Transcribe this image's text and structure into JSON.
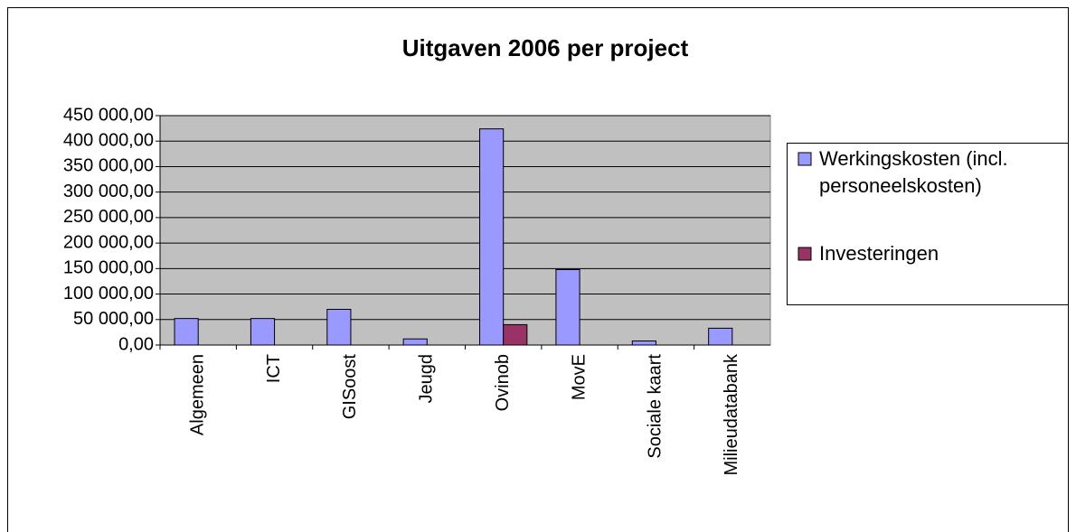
{
  "chart_data": {
    "type": "bar",
    "title": "Uitgaven 2006 per project",
    "categories": [
      "Algemeen",
      "ICT",
      "GISoost",
      "Jeugd",
      "Ovinob",
      "MovE",
      "Sociale kaart",
      "Milieudatabank"
    ],
    "series": [
      {
        "name": "Werkingskosten (incl. personeelskosten)",
        "color": "#9999ff",
        "values": [
          52000,
          52000,
          70000,
          12000,
          424000,
          148000,
          8000,
          33000
        ]
      },
      {
        "name": "Investeringen",
        "color": "#993366",
        "values": [
          0,
          0,
          0,
          0,
          40000,
          0,
          0,
          0
        ]
      }
    ],
    "ylim": [
      0,
      450000
    ],
    "yticks": [
      {
        "value": 0,
        "label": "0,00"
      },
      {
        "value": 50000,
        "label": "50 000,00"
      },
      {
        "value": 100000,
        "label": "100 000,00"
      },
      {
        "value": 150000,
        "label": "150 000,00"
      },
      {
        "value": 200000,
        "label": "200 000,00"
      },
      {
        "value": 250000,
        "label": "250 000,00"
      },
      {
        "value": 300000,
        "label": "300 000,00"
      },
      {
        "value": 350000,
        "label": "350 000,00"
      },
      {
        "value": 400000,
        "label": "400 000,00"
      },
      {
        "value": 450000,
        "label": "450 000,00"
      }
    ],
    "grid": true,
    "legend": "right",
    "plot_background": "#c0c0c0"
  }
}
